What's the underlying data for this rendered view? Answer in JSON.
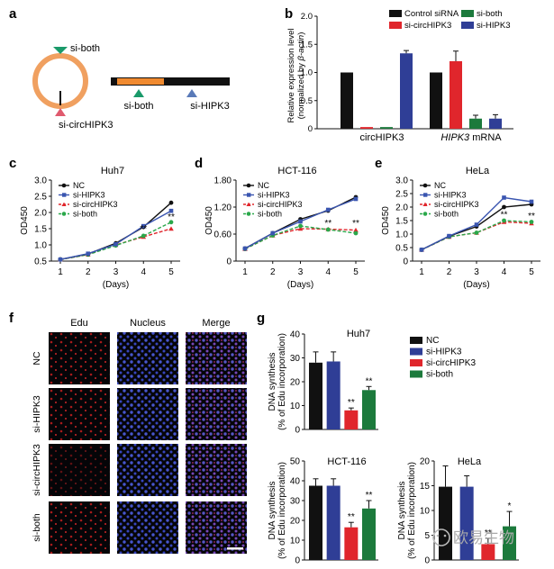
{
  "panels": {
    "a": {
      "letter": "a",
      "labels": {
        "si_both_top": "si-both",
        "si_circ": "si-circHIPK3",
        "si_both_bottom": "si-both",
        "si_hipk3": "si-HIPK3"
      },
      "colors": {
        "ring": "#f0a060",
        "si_both": "#1a9a6a",
        "si_circ": "#e05a6e",
        "si_hipk3": "#5a7ab8",
        "exon": "#f08a30",
        "bar": "#111111"
      }
    },
    "b": {
      "letter": "b",
      "legend": [
        "Control siRNA",
        "si-circHIPK3",
        "si-both",
        "si-HIPK3"
      ],
      "colors": [
        "#111111",
        "#e0262c",
        "#1c7a3c",
        "#2f3e96"
      ],
      "ylabel_1": "Relative expression level",
      "ylabel_2": "(normalized by ",
      "ylabel_beta": "β-actin",
      "ylabel_close": ")",
      "groups": [
        "circHIPK3",
        "HIPK3",
        " mRNA"
      ],
      "yticks": [
        "0",
        "0.5",
        "1.0",
        "1.5",
        "2.0"
      ]
    },
    "c": {
      "letter": "c",
      "title": "Huh7",
      "yticks": [
        "0.5",
        "1.0",
        "1.5",
        "2.0",
        "2.5",
        "3.0"
      ],
      "stars": [
        "**",
        "**"
      ]
    },
    "d": {
      "letter": "d",
      "title": "HCT-116",
      "yticks": [
        "0",
        "0.60",
        "1.20",
        "1.80"
      ],
      "stars": [
        "**",
        "**"
      ]
    },
    "e": {
      "letter": "e",
      "title": "HeLa",
      "yticks": [
        "0",
        "0.5",
        "1.0",
        "1.5",
        "2.0",
        "2.5",
        "3.0"
      ],
      "stars": [
        "**",
        "**"
      ]
    },
    "growth_common": {
      "ylabel": "OD450",
      "xlabel": "(Days)",
      "xticks": [
        "1",
        "2",
        "3",
        "4",
        "5"
      ],
      "legend": [
        "NC",
        "si-HIPK3",
        "si-circHIPK3",
        "si-both"
      ],
      "colors": [
        "#111111",
        "#3a55b0",
        "#e0262c",
        "#2aa84a"
      ]
    },
    "f": {
      "letter": "f",
      "cols": [
        "Edu",
        "Nucleus",
        "Merge"
      ],
      "rows": [
        "NC",
        "si-HIPK3",
        "si-circHIPK3",
        "si-both"
      ]
    },
    "g": {
      "letter": "g",
      "ylabel_1": "DNA synthesis",
      "ylabel_2": "(% of Edu incorporation)",
      "legend": [
        "NC",
        "si-HIPK3",
        "si-circHIPK3",
        "si-both"
      ],
      "colors": [
        "#111111",
        "#2f3e96",
        "#e0262c",
        "#1c7a3c"
      ],
      "huh7": {
        "title": "Huh7",
        "yticks": [
          "0",
          "10",
          "20",
          "30",
          "40"
        ],
        "stars": [
          "**",
          "**"
        ]
      },
      "hct": {
        "title": "HCT-116",
        "yticks": [
          "0",
          "10",
          "20",
          "30",
          "40",
          "50"
        ],
        "stars": [
          "**",
          "**"
        ]
      },
      "hela": {
        "title": "HeLa",
        "yticks": [
          "0",
          "5",
          "10",
          "15",
          "20"
        ],
        "stars": [
          "**",
          "*"
        ]
      }
    },
    "watermark": "欧易生物"
  },
  "chart_data": [
    {
      "panel": "b",
      "type": "bar",
      "categories": [
        "circHIPK3",
        "HIPK3 mRNA"
      ],
      "ylim": [
        0,
        2.0
      ],
      "series": [
        {
          "name": "Control siRNA",
          "values": [
            1.0,
            1.0
          ],
          "err": [
            0,
            0
          ]
        },
        {
          "name": "si-circHIPK3",
          "values": [
            0.03,
            1.2
          ],
          "err": [
            0,
            0.18
          ]
        },
        {
          "name": "si-both",
          "values": [
            0.03,
            0.18
          ],
          "err": [
            0,
            0.06
          ]
        },
        {
          "name": "si-HIPK3",
          "values": [
            1.34,
            0.18
          ],
          "err": [
            0.05,
            0.07
          ]
        }
      ]
    },
    {
      "panel": "c",
      "type": "line",
      "title": "Huh7",
      "x": [
        1,
        2,
        3,
        4,
        5
      ],
      "ylim": [
        0.5,
        3.0
      ],
      "series": [
        {
          "name": "NC",
          "values": [
            0.55,
            0.72,
            1.05,
            1.55,
            2.3
          ]
        },
        {
          "name": "si-HIPK3",
          "values": [
            0.55,
            0.73,
            1.02,
            1.58,
            2.05
          ]
        },
        {
          "name": "si-circHIPK3",
          "values": [
            0.55,
            0.7,
            1.0,
            1.25,
            1.5
          ]
        },
        {
          "name": "si-both",
          "values": [
            0.55,
            0.7,
            0.98,
            1.28,
            1.7
          ]
        }
      ]
    },
    {
      "panel": "d",
      "type": "line",
      "title": "HCT-116",
      "x": [
        1,
        2,
        3,
        4,
        5
      ],
      "ylim": [
        0,
        1.8
      ],
      "series": [
        {
          "name": "NC",
          "values": [
            0.28,
            0.62,
            0.93,
            1.12,
            1.42
          ]
        },
        {
          "name": "si-HIPK3",
          "values": [
            0.28,
            0.62,
            0.88,
            1.14,
            1.38
          ]
        },
        {
          "name": "si-circHIPK3",
          "values": [
            0.27,
            0.57,
            0.72,
            0.71,
            0.69
          ]
        },
        {
          "name": "si-both",
          "values": [
            0.27,
            0.57,
            0.78,
            0.7,
            0.62
          ]
        }
      ]
    },
    {
      "panel": "e",
      "type": "line",
      "title": "HeLa",
      "x": [
        1,
        2,
        3,
        4,
        5
      ],
      "ylim": [
        0,
        3.0
      ],
      "series": [
        {
          "name": "NC",
          "values": [
            0.42,
            0.92,
            1.28,
            2.0,
            2.1
          ]
        },
        {
          "name": "si-HIPK3",
          "values": [
            0.42,
            0.93,
            1.35,
            2.35,
            2.2
          ]
        },
        {
          "name": "si-circHIPK3",
          "values": [
            0.42,
            0.9,
            1.05,
            1.45,
            1.4
          ]
        },
        {
          "name": "si-both",
          "values": [
            0.42,
            0.9,
            1.05,
            1.5,
            1.45
          ]
        }
      ]
    },
    {
      "panel": "g-huh7",
      "type": "bar",
      "title": "Huh7",
      "categories": [
        "NC",
        "si-HIPK3",
        "si-circHIPK3",
        "si-both"
      ],
      "ylim": [
        0,
        40
      ],
      "values": [
        28,
        28.5,
        8,
        16.5
      ],
      "err": [
        4.5,
        4,
        1,
        1.5
      ]
    },
    {
      "panel": "g-hct",
      "type": "bar",
      "title": "HCT-116",
      "categories": [
        "NC",
        "si-HIPK3",
        "si-circHIPK3",
        "si-both"
      ],
      "ylim": [
        0,
        50
      ],
      "values": [
        37.5,
        37.5,
        16.5,
        26
      ],
      "err": [
        3.5,
        3.5,
        2.5,
        4
      ]
    },
    {
      "panel": "g-hela",
      "type": "bar",
      "title": "HeLa",
      "categories": [
        "NC",
        "si-HIPK3",
        "si-circHIPK3",
        "si-both"
      ],
      "ylim": [
        0,
        20
      ],
      "values": [
        14.8,
        14.8,
        3.2,
        6.8
      ],
      "err": [
        4.2,
        2.2,
        1.2,
        3
      ]
    }
  ]
}
